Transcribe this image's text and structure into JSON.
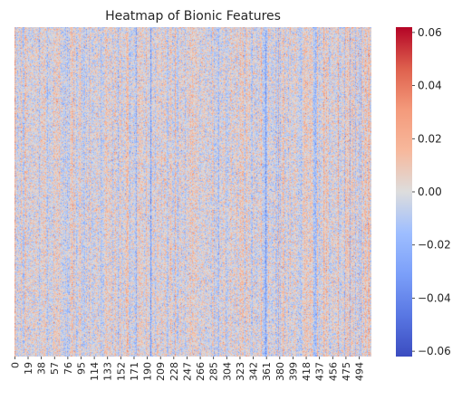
{
  "chart_data": {
    "type": "heatmap",
    "title": "Heatmap of Bionic Features",
    "xlabel": "",
    "ylabel": "",
    "columns": 512,
    "rows": 480,
    "x_tick_step": 19,
    "x_ticks": [
      "0",
      "19",
      "38",
      "57",
      "76",
      "95",
      "114",
      "133",
      "152",
      "171",
      "190",
      "209",
      "228",
      "247",
      "266",
      "285",
      "304",
      "323",
      "342",
      "361",
      "380",
      "399",
      "418",
      "437",
      "456",
      "475",
      "494"
    ],
    "y_ticks": [],
    "colormap": "coolwarm",
    "value_range": [
      -0.062,
      0.062
    ],
    "colorbar": {
      "ticks": [
        0.06,
        0.04,
        0.02,
        0.0,
        -0.02,
        -0.04,
        -0.06
      ],
      "tick_labels": [
        "0.06",
        "0.04",
        "0.02",
        "0.00",
        "−0.02",
        "−0.04",
        "−0.06"
      ]
    },
    "colors": {
      "low": "#3b4cc0",
      "mid": "#dddddd",
      "high": "#b40426"
    },
    "grid": false
  }
}
